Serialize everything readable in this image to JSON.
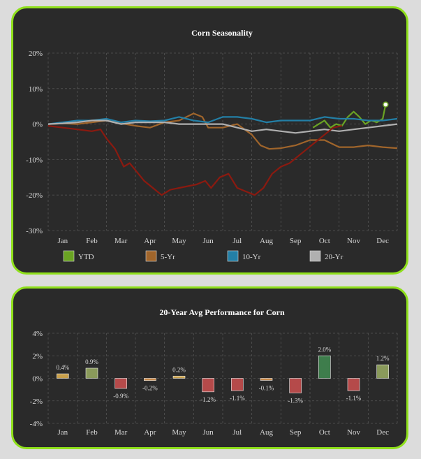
{
  "colors": {
    "panel_bg": "#2a2a2a",
    "panel_border": "#8fe01b",
    "grid": "#555555",
    "ytd": "#6aa323",
    "five_yr": "#a0652b",
    "ten_yr": "#237fa6",
    "twenty_yr": "#b0b0b0",
    "current": "#8b1a10"
  },
  "chart_data": [
    {
      "type": "line",
      "title": "Corn Seasonality",
      "x_ticks": [
        "Jan",
        "Feb",
        "Mar",
        "Apr",
        "May",
        "Jun",
        "Jul",
        "Aug",
        "Sep",
        "Oct",
        "Nov",
        "Dec"
      ],
      "y_ticks": [
        "20%",
        "10%",
        "0%",
        "-10%",
        "-20%",
        "-30%"
      ],
      "ylim": [
        -30,
        20
      ],
      "xlim": [
        0,
        12
      ],
      "grid": true,
      "legend_position": "bottom",
      "legend": [
        "YTD",
        "5-Yr",
        "10-Yr",
        "20-Yr"
      ],
      "series": [
        {
          "name": "YTD",
          "color": "#6aa323",
          "points": [
            [
              9.1,
              -1
            ],
            [
              9.3,
              0
            ],
            [
              9.5,
              1
            ],
            [
              9.7,
              -1
            ],
            [
              9.9,
              0
            ],
            [
              10.1,
              -0.5
            ],
            [
              10.3,
              2
            ],
            [
              10.5,
              3.5
            ],
            [
              10.7,
              2
            ],
            [
              10.9,
              0
            ],
            [
              11.1,
              1
            ],
            [
              11.3,
              0.5
            ],
            [
              11.5,
              1.5
            ],
            [
              11.6,
              5.5
            ]
          ]
        },
        {
          "name": "5-Yr",
          "color": "#a0652b",
          "points": [
            [
              0,
              0
            ],
            [
              0.5,
              0.2
            ],
            [
              1,
              0
            ],
            [
              1.5,
              0.5
            ],
            [
              2,
              1
            ],
            [
              2.5,
              0.2
            ],
            [
              3,
              -0.5
            ],
            [
              3.5,
              -1
            ],
            [
              4,
              0.5
            ],
            [
              4.5,
              1
            ],
            [
              5,
              3
            ],
            [
              5.3,
              2
            ],
            [
              5.5,
              -1
            ],
            [
              6,
              -1
            ],
            [
              6.5,
              0
            ],
            [
              7,
              -3
            ],
            [
              7.3,
              -6
            ],
            [
              7.6,
              -7
            ],
            [
              8,
              -6.8
            ],
            [
              8.5,
              -6
            ],
            [
              9,
              -4.5
            ],
            [
              9.5,
              -4.5
            ],
            [
              10,
              -6.5
            ],
            [
              10.5,
              -6.5
            ],
            [
              11,
              -6
            ],
            [
              11.5,
              -6.5
            ],
            [
              12,
              -6.8
            ]
          ]
        },
        {
          "name": "10-Yr",
          "color": "#237fa6",
          "points": [
            [
              0,
              0
            ],
            [
              0.5,
              0.5
            ],
            [
              1,
              1
            ],
            [
              1.5,
              1
            ],
            [
              2,
              1.5
            ],
            [
              2.5,
              0.5
            ],
            [
              3,
              1
            ],
            [
              3.5,
              0.8
            ],
            [
              4,
              1
            ],
            [
              4.5,
              2
            ],
            [
              5,
              1
            ],
            [
              5.5,
              0.5
            ],
            [
              6,
              2
            ],
            [
              6.5,
              2
            ],
            [
              7,
              1.5
            ],
            [
              7.5,
              0.5
            ],
            [
              8,
              1
            ],
            [
              8.5,
              1
            ],
            [
              9,
              1
            ],
            [
              9.5,
              2
            ],
            [
              10,
              1.5
            ],
            [
              10.5,
              1.5
            ],
            [
              11,
              1
            ],
            [
              11.5,
              1
            ],
            [
              12,
              1.5
            ]
          ]
        },
        {
          "name": "20-Yr",
          "color": "#b0b0b0",
          "points": [
            [
              0,
              0
            ],
            [
              0.5,
              0.2
            ],
            [
              1,
              0.5
            ],
            [
              1.5,
              1
            ],
            [
              2,
              1
            ],
            [
              2.5,
              0
            ],
            [
              3,
              0.5
            ],
            [
              3.5,
              0.5
            ],
            [
              4,
              0.5
            ],
            [
              4.5,
              0
            ],
            [
              5,
              0
            ],
            [
              5.5,
              0
            ],
            [
              6,
              0
            ],
            [
              6.5,
              -1
            ],
            [
              7,
              -2
            ],
            [
              7.5,
              -1.5
            ],
            [
              8,
              -2
            ],
            [
              8.5,
              -2.5
            ],
            [
              9,
              -2
            ],
            [
              9.5,
              -1.5
            ],
            [
              10,
              -2
            ],
            [
              10.5,
              -1.5
            ],
            [
              11,
              -1
            ],
            [
              11.5,
              -0.5
            ],
            [
              12,
              0
            ]
          ]
        },
        {
          "name": "",
          "color": "#8b1a10",
          "points": [
            [
              0,
              -0.5
            ],
            [
              0.5,
              -1
            ],
            [
              1,
              -1.5
            ],
            [
              1.5,
              -2
            ],
            [
              1.8,
              -1.5
            ],
            [
              2,
              -4
            ],
            [
              2.3,
              -7
            ],
            [
              2.6,
              -12
            ],
            [
              2.8,
              -11
            ],
            [
              3,
              -13
            ],
            [
              3.3,
              -16
            ],
            [
              3.6,
              -18
            ],
            [
              3.9,
              -20
            ],
            [
              4.2,
              -18.5
            ],
            [
              4.5,
              -18
            ],
            [
              4.8,
              -17.5
            ],
            [
              5.1,
              -17
            ],
            [
              5.4,
              -16
            ],
            [
              5.6,
              -18
            ],
            [
              5.9,
              -15
            ],
            [
              6.2,
              -14
            ],
            [
              6.5,
              -18
            ],
            [
              6.8,
              -19
            ],
            [
              7.1,
              -20
            ],
            [
              7.4,
              -18
            ],
            [
              7.7,
              -14
            ],
            [
              8,
              -12
            ],
            [
              8.3,
              -11
            ],
            [
              8.6,
              -9
            ],
            [
              8.9,
              -7
            ],
            [
              9.2,
              -5
            ],
            [
              9.5,
              -3
            ],
            [
              9.8,
              -1
            ],
            [
              10.1,
              -0.5
            ]
          ]
        }
      ]
    },
    {
      "type": "bar",
      "title": "20-Year Avg Performance for Corn",
      "categories": [
        "Jan",
        "Feb",
        "Mar",
        "Apr",
        "May",
        "Jun",
        "Jul",
        "Aug",
        "Sep",
        "Oct",
        "Nov",
        "Dec"
      ],
      "values": [
        0.4,
        0.9,
        -0.9,
        -0.2,
        0.2,
        -1.2,
        -1.1,
        -0.1,
        -1.3,
        2.0,
        -1.1,
        1.2
      ],
      "value_labels": [
        "0.4%",
        "0.9%",
        "-0.9%",
        "-0.2%",
        "0.2%",
        "-1.2%",
        "-1.1%",
        "-0.1%",
        "-1.3%",
        "2.0%",
        "-1.1%",
        "1.2%"
      ],
      "y_ticks": [
        "4%",
        "2%",
        "0%",
        "-2%",
        "-4%"
      ],
      "ylim": [
        -4,
        4
      ],
      "grid": true,
      "colors": {
        "positive_big": "#3e7d4c",
        "positive": "#8a9a5b",
        "small_pos": "#c9a04a",
        "negative": "#b54a4a",
        "small_neg": "#c98a4a"
      }
    }
  ]
}
